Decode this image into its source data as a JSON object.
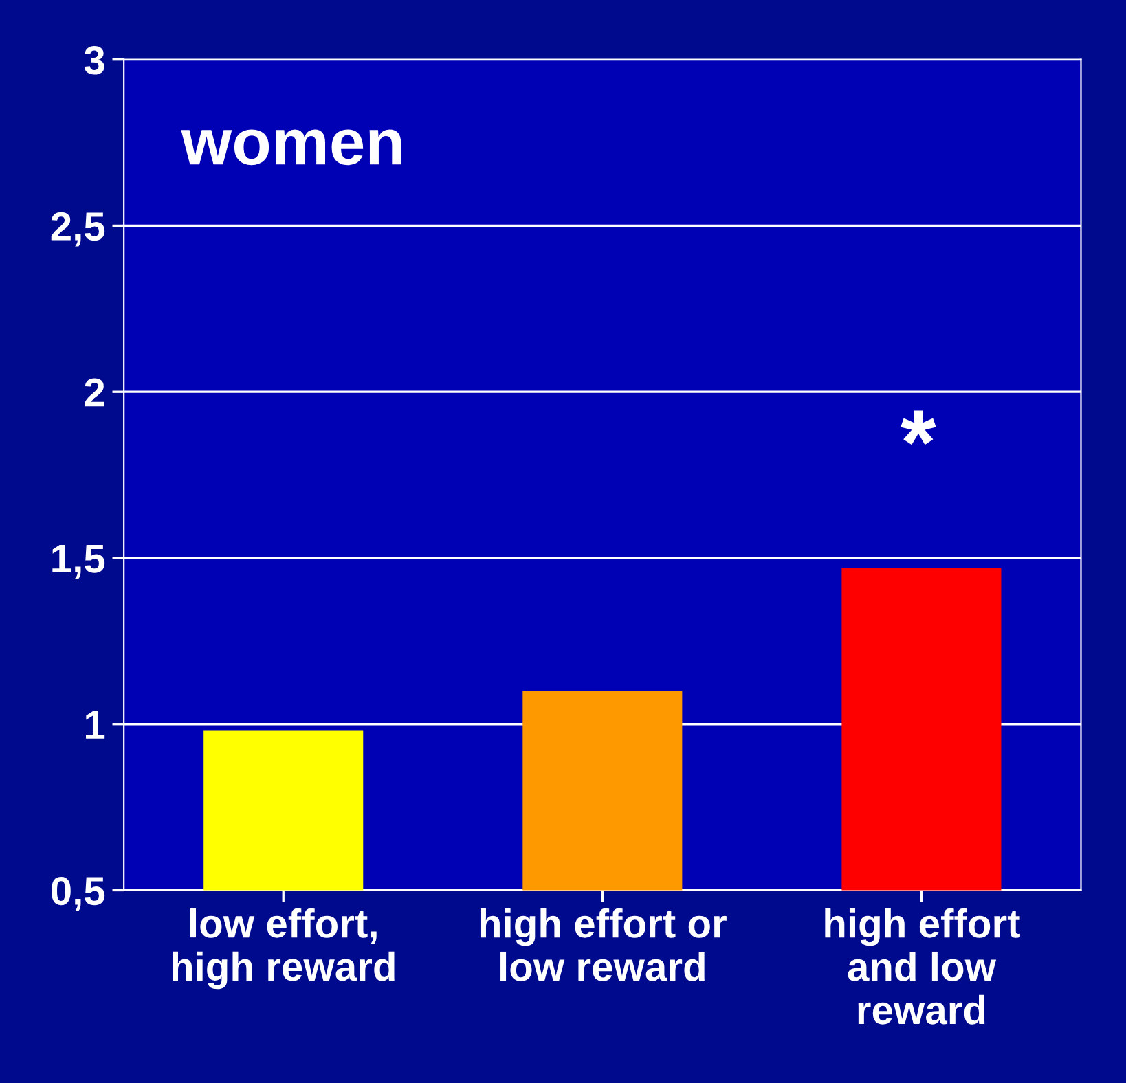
{
  "chart_data": {
    "type": "bar",
    "title": "women",
    "categories": [
      "low effort,\nhigh reward",
      "high effort or\nlow reward",
      "high effort\nand low\nreward"
    ],
    "values": [
      0.98,
      1.1,
      1.47
    ],
    "colors": [
      "#ffff00",
      "#ff9900",
      "#ff0000"
    ],
    "ylim": [
      0.5,
      3
    ],
    "yticks": [
      {
        "value": 0.5,
        "label": "0,5"
      },
      1,
      {
        "value": 1.5,
        "label": "1,5"
      },
      2,
      {
        "value": 2.5,
        "label": "2,5"
      },
      3
    ],
    "grid": "y",
    "annotations": [
      "*"
    ]
  }
}
